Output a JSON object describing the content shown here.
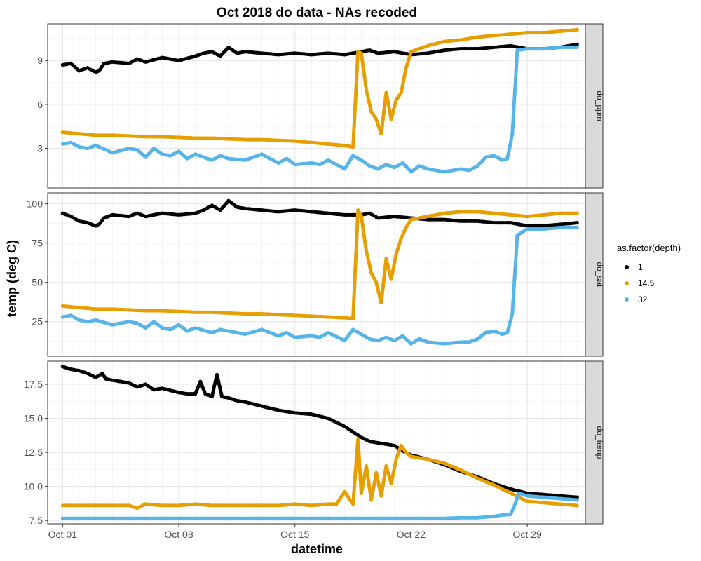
{
  "chart_data": {
    "type": "scatter",
    "title": "Oct 2018 do data - NAs recoded",
    "xlabel": "datetime",
    "ylabel": "temp (deg C)",
    "x_ticks": [
      "Oct 01",
      "Oct 08",
      "Oct 15",
      "Oct 22",
      "Oct 29"
    ],
    "x_tick_days": [
      1,
      8,
      15,
      22,
      29
    ],
    "xlim": [
      0.1,
      32.5
    ],
    "grid": true,
    "legend": {
      "title": "as.factor(depth)",
      "position": "right",
      "entries": [
        "1",
        "14.5",
        "32"
      ]
    },
    "colors": {
      "1": "#000000",
      "14.5": "#E69F00",
      "32": "#56B4E9"
    },
    "panels": [
      {
        "label": "do_ppm",
        "ylim": [
          0.3,
          11.5
        ],
        "y_ticks": [
          3,
          6,
          9
        ],
        "series": [
          {
            "name": "1",
            "x": [
              1,
              1.5,
              2,
              2.5,
              3,
              3.2,
              3.5,
              4,
              5,
              5.5,
              6,
              7,
              8,
              9,
              9.5,
              10,
              10.5,
              11,
              11.5,
              12,
              13,
              14,
              15,
              16,
              17,
              18,
              19,
              19.5,
              20,
              21,
              22,
              23,
              24,
              25,
              26,
              27,
              28,
              29,
              30,
              31,
              32
            ],
            "y": [
              8.7,
              8.8,
              8.3,
              8.5,
              8.2,
              8.3,
              8.8,
              8.9,
              8.8,
              9.1,
              8.9,
              9.2,
              9.0,
              9.3,
              9.5,
              9.6,
              9.3,
              9.9,
              9.5,
              9.6,
              9.5,
              9.4,
              9.5,
              9.4,
              9.5,
              9.4,
              9.6,
              9.7,
              9.5,
              9.6,
              9.4,
              9.5,
              9.7,
              9.8,
              9.8,
              9.9,
              10.0,
              9.8,
              9.8,
              9.9,
              10.1
            ]
          },
          {
            "name": "14.5",
            "x": [
              1,
              2,
              3,
              4,
              5,
              6,
              7,
              8,
              9,
              10,
              11,
              12,
              13,
              14,
              15,
              16,
              17,
              18,
              18.5,
              18.8,
              19,
              19.3,
              19.6,
              19.9,
              20.2,
              20.5,
              20.8,
              21.1,
              21.4,
              21.7,
              22,
              23,
              24,
              25,
              26,
              27,
              28,
              29,
              30,
              31,
              32
            ],
            "y": [
              4.1,
              4.0,
              3.9,
              3.9,
              3.85,
              3.8,
              3.8,
              3.75,
              3.7,
              3.7,
              3.65,
              3.6,
              3.6,
              3.55,
              3.5,
              3.4,
              3.3,
              3.2,
              3.1,
              9.6,
              9.5,
              7.0,
              5.5,
              5.0,
              4.0,
              6.8,
              5.0,
              6.3,
              6.8,
              8.5,
              9.6,
              10.0,
              10.3,
              10.4,
              10.6,
              10.7,
              10.8,
              10.9,
              10.9,
              11.0,
              11.1
            ]
          },
          {
            "name": "32",
            "x": [
              1,
              1.5,
              2,
              2.5,
              3,
              4,
              5,
              5.5,
              6,
              6.5,
              7,
              7.5,
              8,
              8.5,
              9,
              10,
              10.5,
              11,
              12,
              13,
              14,
              14.5,
              15,
              16,
              16.5,
              17,
              18,
              18.5,
              19,
              19.5,
              20,
              20.5,
              21,
              21.5,
              22,
              22.5,
              23,
              24,
              25,
              25.5,
              26,
              26.5,
              27,
              27.5,
              27.8,
              28.1,
              28.4,
              29,
              30,
              31,
              32
            ],
            "y": [
              3.3,
              3.4,
              3.1,
              3.0,
              3.2,
              2.7,
              3.0,
              2.9,
              2.4,
              3.0,
              2.6,
              2.5,
              2.8,
              2.3,
              2.6,
              2.2,
              2.5,
              2.3,
              2.2,
              2.6,
              2.0,
              2.3,
              1.9,
              2.0,
              1.9,
              2.2,
              1.6,
              2.5,
              2.2,
              1.8,
              1.6,
              1.9,
              1.7,
              2.0,
              1.4,
              1.8,
              1.6,
              1.4,
              1.6,
              1.5,
              1.8,
              2.4,
              2.5,
              2.2,
              2.3,
              4.0,
              9.7,
              9.8,
              9.8,
              9.9,
              9.9
            ]
          }
        ]
      },
      {
        "label": "do_sat",
        "ylim": [
          3,
          107
        ],
        "y_ticks": [
          25,
          50,
          75,
          100
        ],
        "series": [
          {
            "name": "1",
            "x": [
              1,
              1.5,
              2,
              2.5,
              3,
              3.2,
              3.5,
              4,
              5,
              5.5,
              6,
              7,
              8,
              9,
              9.5,
              10,
              10.5,
              11,
              11.5,
              12,
              13,
              14,
              15,
              16,
              17,
              18,
              19,
              19.5,
              20,
              21,
              22,
              23,
              24,
              25,
              26,
              27,
              28,
              29,
              30,
              31,
              32
            ],
            "y": [
              94,
              92,
              89,
              88,
              86,
              87,
              91,
              93,
              92,
              94,
              92,
              94,
              93,
              94,
              96,
              99,
              96,
              102,
              98,
              97,
              96,
              95,
              96,
              95,
              94,
              93,
              93,
              94,
              91,
              92,
              91,
              90,
              90,
              89,
              89,
              88,
              88,
              86,
              86,
              87,
              88
            ]
          },
          {
            "name": "14.5",
            "x": [
              1,
              2,
              3,
              4,
              5,
              6,
              7,
              8,
              9,
              10,
              11,
              12,
              13,
              14,
              15,
              16,
              17,
              18,
              18.5,
              18.8,
              19,
              19.3,
              19.6,
              19.9,
              20.2,
              20.5,
              20.8,
              21.1,
              21.4,
              21.7,
              22,
              23,
              24,
              25,
              26,
              27,
              28,
              29,
              30,
              31,
              32
            ],
            "y": [
              35,
              34,
              33,
              33,
              32.5,
              32,
              32,
              31.5,
              31,
              31,
              30.5,
              30,
              30,
              29.5,
              29,
              28.5,
              28,
              27.5,
              27,
              96,
              92,
              70,
              56,
              50,
              37,
              65,
              52,
              68,
              78,
              85,
              90,
              92,
              94,
              95,
              95,
              94,
              93,
              92,
              93,
              94,
              94
            ]
          },
          {
            "name": "32",
            "x": [
              1,
              1.5,
              2,
              2.5,
              3,
              4,
              5,
              5.5,
              6,
              6.5,
              7,
              7.5,
              8,
              8.5,
              9,
              10,
              10.5,
              11,
              12,
              13,
              14,
              14.5,
              15,
              16,
              16.5,
              17,
              18,
              18.5,
              19,
              19.5,
              20,
              20.5,
              21,
              21.5,
              22,
              22.5,
              23,
              24,
              25,
              25.5,
              26,
              26.5,
              27,
              27.5,
              27.8,
              28.1,
              28.4,
              29,
              30,
              31,
              32
            ],
            "y": [
              28,
              29,
              26,
              25,
              26,
              23,
              25,
              24,
              21,
              25,
              21,
              20,
              23,
              19,
              21,
              18,
              20,
              19,
              17,
              20,
              16,
              18,
              15,
              16,
              15,
              18,
              13,
              20,
              17,
              14,
              13,
              15,
              13,
              16,
              11,
              14,
              12,
              11,
              12,
              12,
              14,
              18,
              19,
              17,
              18,
              30,
              80,
              84,
              84,
              85,
              85
            ]
          }
        ]
      },
      {
        "label": "do_temp",
        "ylim": [
          7.25,
          19.2
        ],
        "y_ticks": [
          7.5,
          10.0,
          12.5,
          15.0,
          17.5
        ],
        "y_tick_labels": [
          "7.5",
          "10.0",
          "12.5",
          "15.0",
          "17.5"
        ],
        "series": [
          {
            "name": "1",
            "x": [
              1,
              1.5,
              2,
              2.5,
              3,
              3.4,
              3.6,
              4,
              5,
              5.5,
              6,
              6.5,
              7,
              8,
              8.5,
              9,
              9.3,
              9.6,
              10,
              10.3,
              10.6,
              11,
              11.5,
              12,
              13,
              14,
              15,
              16,
              17,
              17.5,
              18,
              18.5,
              19,
              19.5,
              20,
              20.5,
              21,
              21.5,
              22,
              23,
              24,
              25,
              26,
              27,
              28,
              29,
              30,
              31,
              32
            ],
            "y": [
              18.8,
              18.6,
              18.5,
              18.3,
              18.0,
              18.3,
              17.9,
              17.8,
              17.6,
              17.3,
              17.5,
              17.1,
              17.2,
              16.9,
              16.8,
              16.8,
              17.7,
              16.8,
              16.6,
              18.2,
              16.6,
              16.5,
              16.3,
              16.2,
              15.9,
              15.6,
              15.4,
              15.3,
              15.0,
              14.7,
              14.4,
              14.0,
              13.6,
              13.3,
              13.2,
              13.1,
              13.0,
              12.6,
              12.3,
              12.0,
              11.6,
              11.1,
              10.7,
              10.2,
              9.8,
              9.5,
              9.4,
              9.3,
              9.2
            ]
          },
          {
            "name": "14.5",
            "x": [
              1,
              2,
              3,
              4,
              5,
              5.5,
              6,
              7,
              8,
              9,
              10,
              11,
              12,
              13,
              14,
              15,
              16,
              17,
              17.5,
              18,
              18.5,
              18.8,
              19,
              19.3,
              19.6,
              19.9,
              20.2,
              20.5,
              20.8,
              21.1,
              21.4,
              21.7,
              22,
              23,
              24,
              25,
              26,
              27,
              28,
              29,
              30,
              31,
              32
            ],
            "y": [
              8.6,
              8.6,
              8.6,
              8.6,
              8.6,
              8.4,
              8.7,
              8.6,
              8.6,
              8.7,
              8.6,
              8.6,
              8.6,
              8.6,
              8.6,
              8.7,
              8.6,
              8.7,
              8.7,
              9.6,
              8.7,
              13.5,
              9.5,
              11.5,
              9.0,
              11.0,
              9.3,
              11.5,
              10.2,
              12.0,
              13.0,
              12.5,
              12.2,
              12.0,
              11.7,
              11.2,
              10.6,
              10.1,
              9.5,
              8.9,
              8.8,
              8.7,
              8.6
            ]
          },
          {
            "name": "32",
            "x": [
              1,
              2,
              3,
              4,
              5,
              6,
              7,
              8,
              9,
              10,
              11,
              12,
              13,
              14,
              15,
              16,
              17,
              18,
              19,
              20,
              21,
              22,
              23,
              24,
              25,
              26,
              27,
              27.5,
              28,
              28.2,
              28.5,
              29,
              30,
              31,
              32
            ],
            "y": [
              7.65,
              7.65,
              7.65,
              7.65,
              7.65,
              7.65,
              7.65,
              7.65,
              7.65,
              7.65,
              7.65,
              7.65,
              7.65,
              7.65,
              7.65,
              7.65,
              7.65,
              7.65,
              7.65,
              7.65,
              7.65,
              7.65,
              7.65,
              7.65,
              7.7,
              7.7,
              7.8,
              7.9,
              7.95,
              8.5,
              9.5,
              9.3,
              9.2,
              9.1,
              9.0
            ]
          }
        ]
      }
    ]
  }
}
